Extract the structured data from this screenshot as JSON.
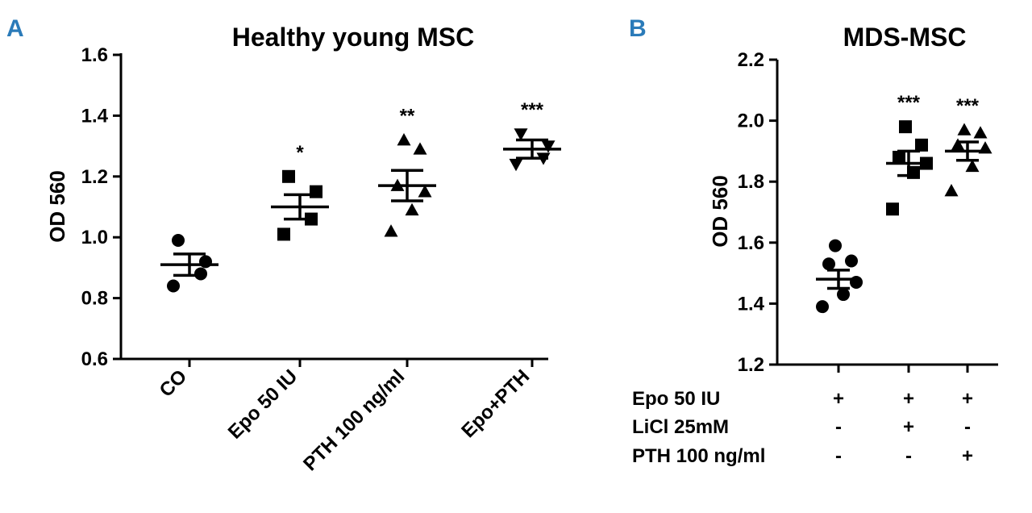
{
  "chart_data": [
    {
      "panel": "A",
      "type": "scatter",
      "title": "Healthy young MSC",
      "xlabel": "",
      "ylabel": "OD 560",
      "ylim": [
        0.6,
        1.6
      ],
      "yticks": [
        "0.6",
        "0.8",
        "1.0",
        "1.2",
        "1.4",
        "1.6"
      ],
      "categories": [
        "CO",
        "Epo 50 IU",
        "PTH 100 ng/ml",
        "Epo+PTH"
      ],
      "series": [
        {
          "name": "CO",
          "marker": "circle",
          "mean": 0.91,
          "sem": 0.035,
          "significance": "",
          "points": [
            0.84,
            0.88,
            0.92,
            0.99
          ]
        },
        {
          "name": "Epo 50 IU",
          "marker": "square",
          "mean": 1.1,
          "sem": 0.04,
          "significance": "*",
          "points": [
            1.01,
            1.06,
            1.15,
            1.2
          ]
        },
        {
          "name": "PTH 100 ng/ml",
          "marker": "triangle-up",
          "mean": 1.17,
          "sem": 0.05,
          "significance": "**",
          "points": [
            1.02,
            1.09,
            1.15,
            1.17,
            1.29,
            1.32
          ]
        },
        {
          "name": "Epo+PTH",
          "marker": "triangle-down",
          "mean": 1.29,
          "sem": 0.03,
          "significance": "***",
          "points": [
            1.24,
            1.26,
            1.3,
            1.34
          ]
        }
      ]
    },
    {
      "panel": "B",
      "type": "scatter",
      "title": "MDS-MSC",
      "xlabel": "",
      "ylabel": "OD 560",
      "ylim": [
        1.2,
        2.2
      ],
      "yticks": [
        "1.2",
        "1.4",
        "1.6",
        "1.8",
        "2.0",
        "2.2"
      ],
      "series": [
        {
          "name": "Epo",
          "marker": "circle",
          "mean": 1.48,
          "sem": 0.03,
          "significance": "",
          "points": [
            1.39,
            1.43,
            1.47,
            1.53,
            1.54,
            1.59
          ]
        },
        {
          "name": "Epo + LiCl",
          "marker": "square",
          "mean": 1.86,
          "sem": 0.04,
          "significance": "***",
          "points": [
            1.71,
            1.83,
            1.86,
            1.88,
            1.92,
            1.98
          ]
        },
        {
          "name": "Epo + PTH",
          "marker": "triangle-up",
          "mean": 1.9,
          "sem": 0.03,
          "significance": "***",
          "points": [
            1.77,
            1.85,
            1.91,
            1.92,
            1.96,
            1.97
          ]
        }
      ],
      "conditions": [
        {
          "label": "Epo 50 IU",
          "values": [
            "+",
            "+",
            "+"
          ]
        },
        {
          "label": "LiCl 25mM",
          "values": [
            "-",
            "+",
            "-"
          ]
        },
        {
          "label": "PTH 100 ng/ml",
          "values": [
            "-",
            "-",
            "+"
          ]
        }
      ]
    }
  ]
}
